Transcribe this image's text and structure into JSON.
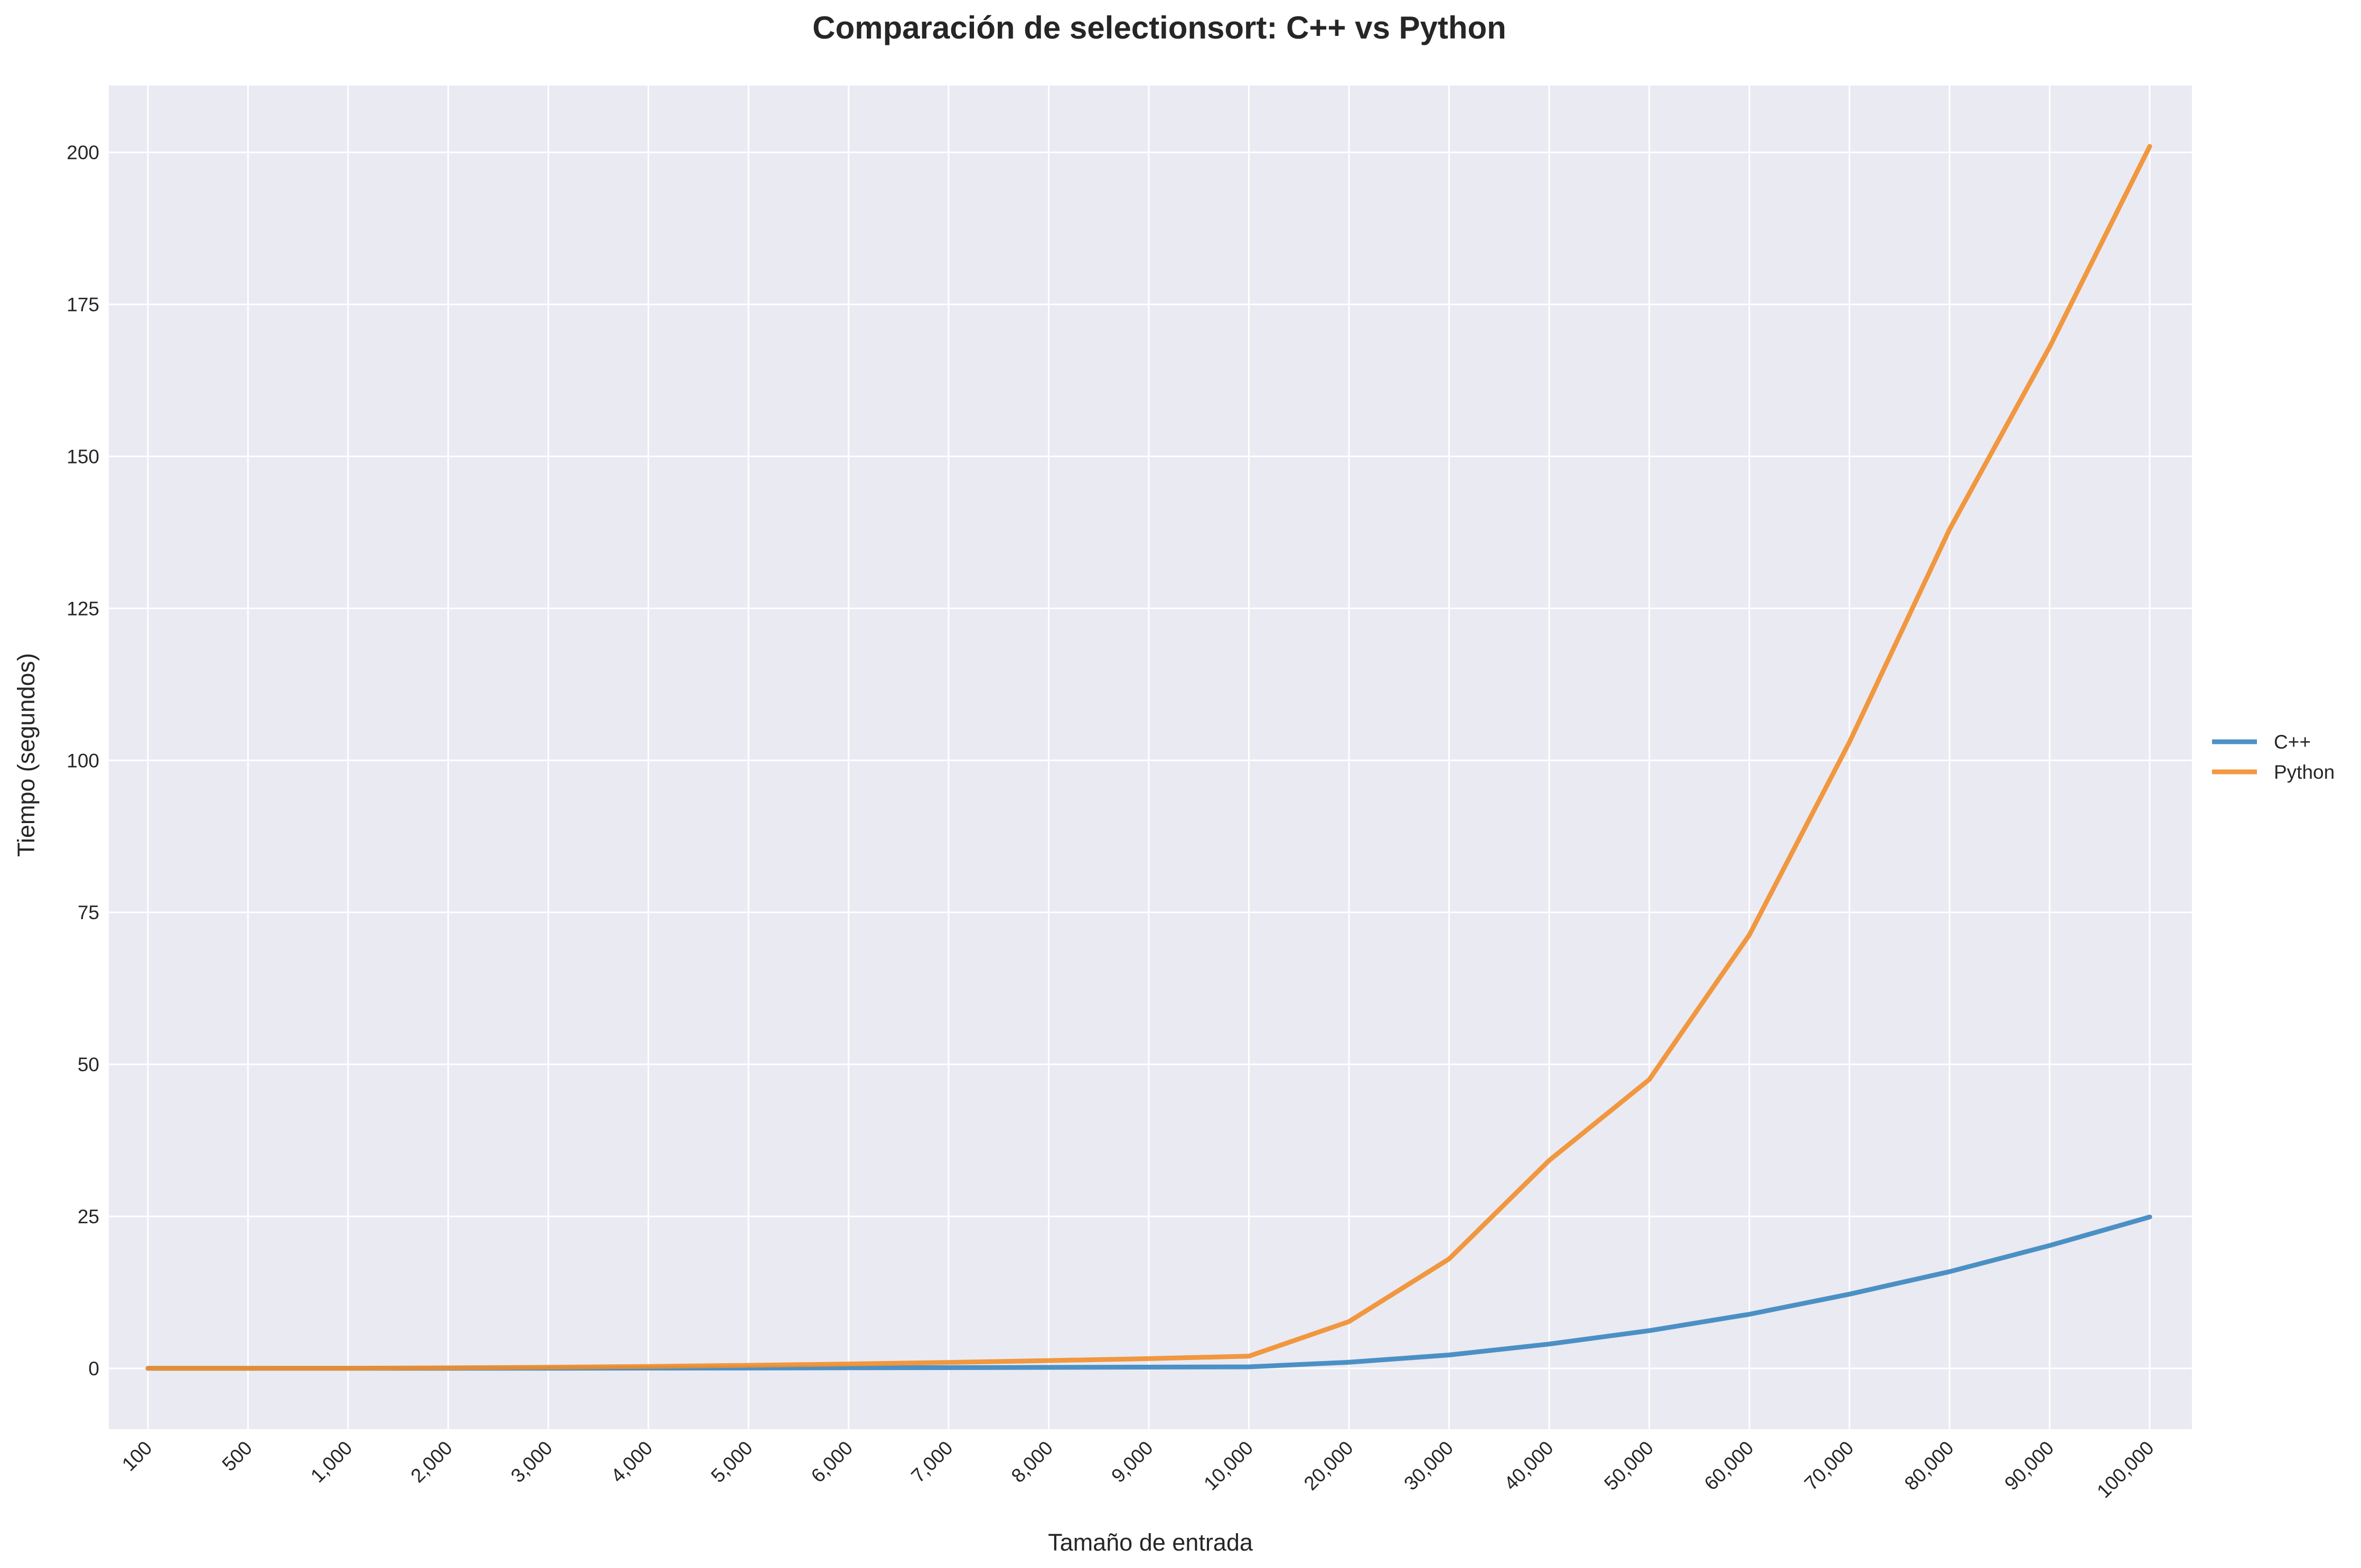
{
  "chart_data": {
    "type": "line",
    "title": "Comparación de selectionsort: C++ vs Python",
    "xlabel": "Tamaño de entrada",
    "ylabel": "Tiempo (segundos)",
    "categories": [
      "100",
      "500",
      "1,000",
      "2,000",
      "3,000",
      "4,000",
      "5,000",
      "6,000",
      "7,000",
      "8,000",
      "9,000",
      "10,000",
      "20,000",
      "30,000",
      "40,000",
      "50,000",
      "60,000",
      "70,000",
      "80,000",
      "90,000",
      "100,000"
    ],
    "series": [
      {
        "name": "C++",
        "color": "#3a86c0",
        "values": [
          0.0,
          0.0,
          0.0,
          0.01,
          0.02,
          0.04,
          0.06,
          0.09,
          0.12,
          0.16,
          0.2,
          0.25,
          1.0,
          2.2,
          4.0,
          6.2,
          8.9,
          12.2,
          15.9,
          20.2,
          24.9
        ]
      },
      {
        "name": "Python",
        "color": "#f28e2b",
        "values": [
          0.0,
          0.01,
          0.02,
          0.08,
          0.18,
          0.32,
          0.5,
          0.72,
          0.98,
          1.28,
          1.6,
          2.0,
          7.7,
          18.0,
          34.2,
          47.5,
          71.3,
          103.0,
          138.0,
          168.0,
          201.0
        ]
      }
    ],
    "yticks": [
      "0",
      "25",
      "50",
      "75",
      "100",
      "125",
      "150",
      "175",
      "200"
    ],
    "ylim": [
      -10,
      211
    ],
    "grid": true,
    "legend": "center-right"
  }
}
